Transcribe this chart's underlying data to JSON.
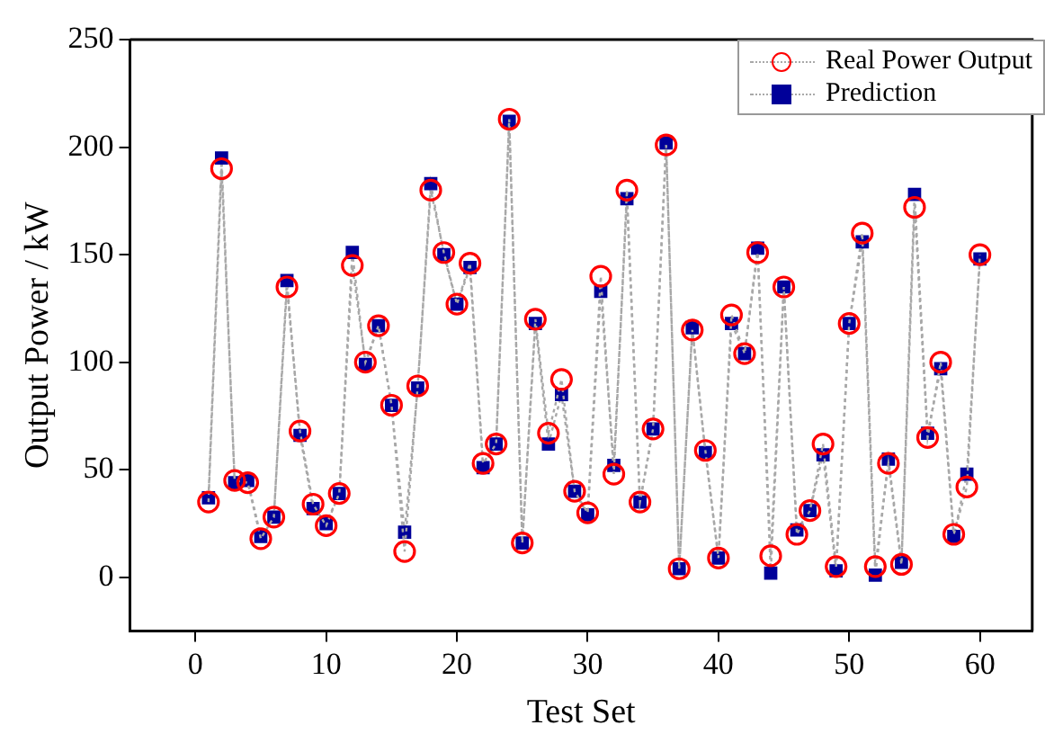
{
  "chart_data": {
    "type": "line",
    "xlabel": "Test Set",
    "ylabel": "Output Power / kW",
    "x": [
      1,
      2,
      3,
      4,
      5,
      6,
      7,
      8,
      9,
      10,
      11,
      12,
      13,
      14,
      15,
      16,
      17,
      18,
      19,
      20,
      21,
      22,
      23,
      24,
      25,
      26,
      27,
      28,
      29,
      30,
      31,
      32,
      33,
      34,
      35,
      36,
      37,
      38,
      39,
      40,
      41,
      42,
      43,
      44,
      45,
      46,
      47,
      48,
      49,
      50,
      51,
      52,
      53,
      54,
      55,
      56,
      57,
      58,
      59,
      60
    ],
    "series": [
      {
        "name": "Real Power Output",
        "color": "#ff0000",
        "marker": "circle",
        "values": [
          35,
          190,
          45,
          44,
          18,
          28,
          135,
          68,
          34,
          24,
          39,
          145,
          100,
          117,
          80,
          12,
          89,
          180,
          151,
          127,
          146,
          53,
          62,
          213,
          16,
          120,
          67,
          92,
          40,
          30,
          140,
          48,
          180,
          35,
          69,
          201,
          4,
          115,
          59,
          9,
          122,
          104,
          151,
          10,
          135,
          20,
          31,
          62,
          5,
          118,
          160,
          5,
          53,
          6,
          172,
          65,
          100,
          20,
          42,
          150
        ]
      },
      {
        "name": "Prediction",
        "color": "#000099",
        "marker": "square",
        "values": [
          37,
          195,
          44,
          45,
          19,
          28,
          138,
          66,
          32,
          25,
          39,
          151,
          99,
          117,
          80,
          21,
          88,
          183,
          150,
          127,
          144,
          51,
          62,
          212,
          16,
          118,
          62,
          85,
          40,
          29,
          133,
          52,
          176,
          35,
          69,
          202,
          4,
          116,
          58,
          9,
          118,
          104,
          153,
          2,
          135,
          22,
          31,
          57,
          3,
          118,
          156,
          1,
          55,
          7,
          178,
          67,
          97,
          19,
          48,
          148
        ]
      }
    ],
    "line_style": "dotted",
    "xlim": [
      -5,
      64
    ],
    "xticks": [
      0,
      10,
      20,
      30,
      40,
      50,
      60
    ],
    "ylim": [
      -25,
      250
    ],
    "yticks": [
      0,
      50,
      100,
      150,
      200,
      250
    ],
    "grid": false,
    "legend": "top right"
  }
}
